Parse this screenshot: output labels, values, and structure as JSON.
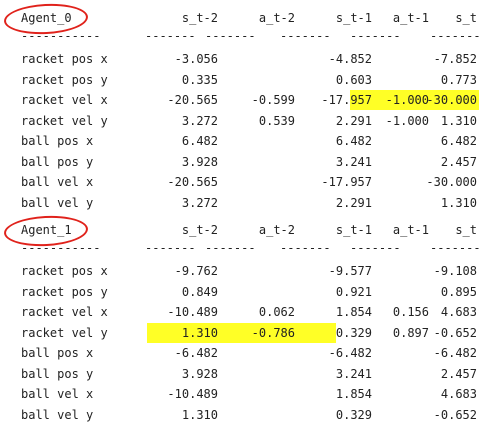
{
  "highlight_color": "#ffff00",
  "circle_color": "#e0221b",
  "blocks": [
    {
      "agent": "Agent_0",
      "headers": [
        "s_t-2",
        "a_t-2",
        "s_t-1",
        "a_t-1",
        "s_t"
      ],
      "separators": [
        "-----------",
        "-------",
        "-------",
        "-------",
        "-------",
        "-------"
      ],
      "rows": [
        {
          "label": "racket pos x",
          "cells": [
            "-3.056",
            "",
            "-4.852",
            "",
            "-7.852"
          ]
        },
        {
          "label": "racket pos y",
          "cells": [
            "0.335",
            "",
            "0.603",
            "",
            "0.773"
          ]
        },
        {
          "label": "racket vel x",
          "cells": [
            "-20.565",
            "-0.599",
            "-17.957",
            "-1.000",
            "-30.000"
          ]
        },
        {
          "label": "racket vel y",
          "cells": [
            "3.272",
            "0.539",
            "2.291",
            "-1.000",
            "1.310"
          ]
        },
        {
          "label": "ball pos x",
          "cells": [
            "6.482",
            "",
            "6.482",
            "",
            "6.482"
          ]
        },
        {
          "label": "ball pos y",
          "cells": [
            "3.928",
            "",
            "3.241",
            "",
            "2.457"
          ]
        },
        {
          "label": "ball vel x",
          "cells": [
            "-20.565",
            "",
            "-17.957",
            "",
            "-30.000"
          ]
        },
        {
          "label": "ball vel y",
          "cells": [
            "3.272",
            "",
            "2.291",
            "",
            "1.310"
          ]
        }
      ]
    },
    {
      "agent": "Agent_1",
      "headers": [
        "s_t-2",
        "a_t-2",
        "s_t-1",
        "a_t-1",
        "s_t"
      ],
      "separators": [
        "-----------",
        "-------",
        "-------",
        "-------",
        "-------",
        "-------"
      ],
      "rows": [
        {
          "label": "racket pos x",
          "cells": [
            "-9.762",
            "",
            "-9.577",
            "",
            "-9.108"
          ]
        },
        {
          "label": "racket pos y",
          "cells": [
            "0.849",
            "",
            "0.921",
            "",
            "0.895"
          ]
        },
        {
          "label": "racket vel x",
          "cells": [
            "-10.489",
            "0.062",
            "1.854",
            "0.156",
            "4.683"
          ]
        },
        {
          "label": "racket vel y",
          "cells": [
            "1.310",
            "-0.786",
            "0.329",
            "0.897",
            "-0.652"
          ]
        },
        {
          "label": "ball pos x",
          "cells": [
            "-6.482",
            "",
            "-6.482",
            "",
            "-6.482"
          ]
        },
        {
          "label": "ball pos y",
          "cells": [
            "3.928",
            "",
            "3.241",
            "",
            "2.457"
          ]
        },
        {
          "label": "ball vel x",
          "cells": [
            "-10.489",
            "",
            "1.854",
            "",
            "4.683"
          ]
        },
        {
          "label": "ball vel y",
          "cells": [
            "1.310",
            "",
            "0.329",
            "",
            "-0.652"
          ]
        }
      ]
    }
  ]
}
